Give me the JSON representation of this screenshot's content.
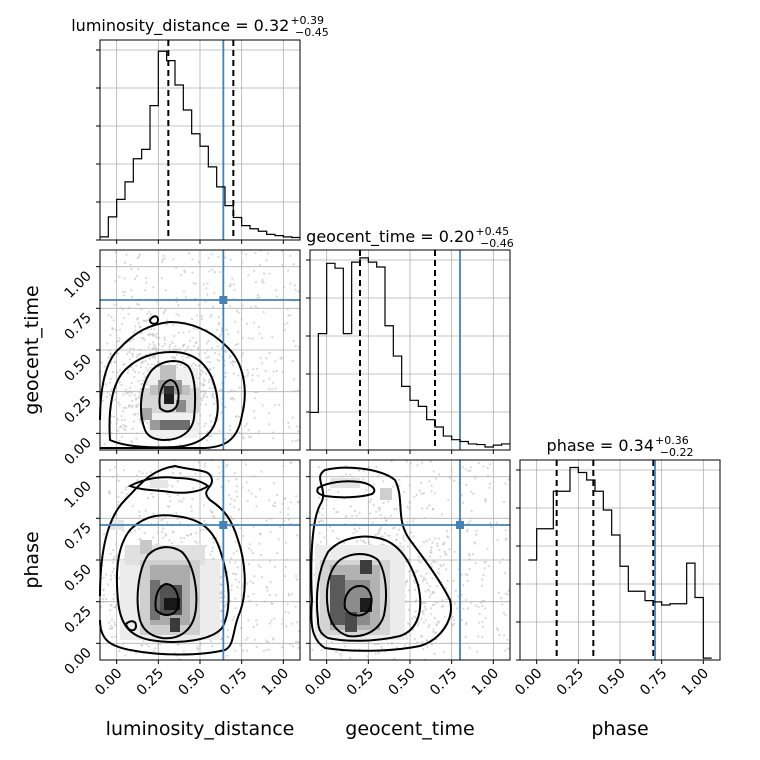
{
  "chart_data": {
    "type": "corner",
    "parameters": [
      "luminosity_distance",
      "geocent_time",
      "phase"
    ],
    "axis_range": [
      -0.1,
      1.1
    ],
    "ticks": [
      0.0,
      0.25,
      0.5,
      0.75,
      1.0
    ],
    "tick_labels": [
      "0.00",
      "0.25",
      "0.50",
      "0.75",
      "1.00"
    ],
    "grid": true,
    "truth_color": "#4682b4",
    "truths": {
      "luminosity_distance": 0.64,
      "geocent_time": 0.8,
      "phase": 0.71
    },
    "titles": [
      {
        "param": "luminosity_distance",
        "text": "luminosity_distance = 0.32",
        "plus": "+0.39",
        "minus": "−0.45"
      },
      {
        "param": "geocent_time",
        "text": "geocent_time = 0.20",
        "plus": "+0.45",
        "minus": "−0.46"
      },
      {
        "param": "phase",
        "text": "phase = 0.34",
        "plus": "+0.36",
        "minus": "−0.22"
      }
    ],
    "quantiles": {
      "luminosity_distance": [
        0.31,
        0.7
      ],
      "geocent_time": [
        0.2,
        0.65
      ],
      "phase": [
        0.12,
        0.34,
        0.7
      ]
    },
    "histograms": {
      "luminosity_distance": {
        "bin_edges": [
          -0.1,
          -0.05,
          0.0,
          0.05,
          0.1,
          0.15,
          0.2,
          0.25,
          0.3,
          0.35,
          0.4,
          0.45,
          0.5,
          0.55,
          0.6,
          0.65,
          0.7,
          0.75,
          0.8,
          0.85,
          0.9,
          0.95,
          1.0,
          1.05,
          1.1
        ],
        "counts": [
          5,
          37,
          65,
          93,
          130,
          145,
          215,
          302,
          287,
          248,
          208,
          170,
          150,
          117,
          85,
          55,
          36,
          23,
          18,
          14,
          9,
          7,
          5,
          4
        ],
        "ymax": 320
      },
      "geocent_time": {
        "bin_edges": [
          -0.1,
          -0.05,
          0.0,
          0.05,
          0.1,
          0.15,
          0.2,
          0.25,
          0.3,
          0.35,
          0.4,
          0.45,
          0.5,
          0.55,
          0.6,
          0.65,
          0.7,
          0.75,
          0.8,
          0.85,
          0.9,
          0.95,
          1.0,
          1.05,
          1.1
        ],
        "counts": [
          62,
          192,
          308,
          300,
          192,
          310,
          317,
          310,
          302,
          205,
          155,
          105,
          82,
          72,
          50,
          38,
          23,
          17,
          14,
          10,
          9,
          5,
          8,
          10
        ],
        "ymax": 330
      },
      "phase": {
        "bin_edges": [
          -0.05,
          0.0,
          0.05,
          0.1,
          0.15,
          0.2,
          0.25,
          0.3,
          0.35,
          0.4,
          0.45,
          0.5,
          0.55,
          0.6,
          0.65,
          0.7,
          0.75,
          0.8,
          0.85,
          0.9,
          0.95,
          1.0,
          1.05
        ],
        "counts": [
          160,
          210,
          210,
          270,
          270,
          308,
          300,
          288,
          270,
          240,
          200,
          150,
          110,
          110,
          95,
          93,
          88,
          90,
          90,
          155,
          100,
          3
        ],
        "ymax": 320
      }
    }
  }
}
